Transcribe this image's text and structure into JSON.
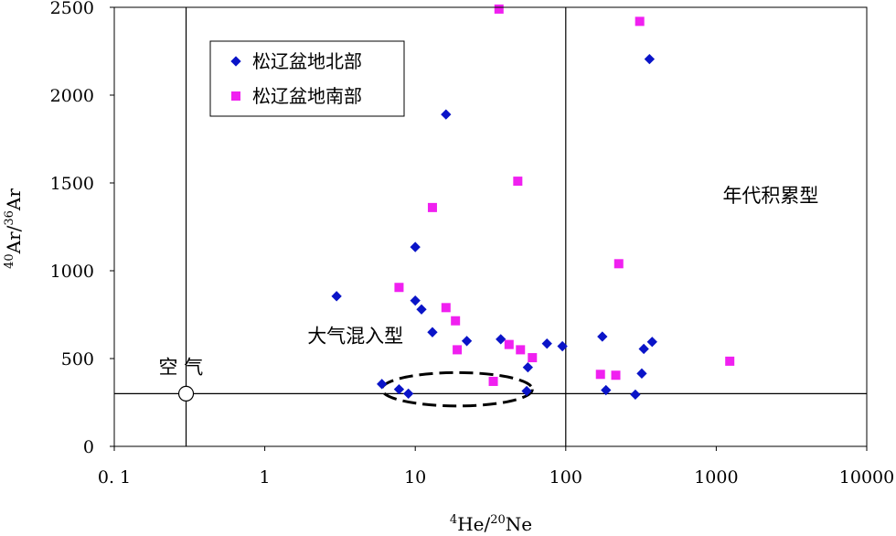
{
  "chart_data": {
    "type": "scatter",
    "title": "",
    "xscale": "log",
    "xlim": [
      0.1,
      10000
    ],
    "ylim": [
      0,
      2500
    ],
    "x_tick_values": [
      0.1,
      1,
      10,
      100,
      1000,
      10000
    ],
    "x_tick_labels": [
      "0. 1",
      "1",
      "10",
      "100",
      "1000",
      "10000"
    ],
    "y_tick_values": [
      0,
      500,
      1000,
      1500,
      2000,
      2500
    ],
    "y_tick_labels": [
      "0",
      "500",
      "1000",
      "1500",
      "2000",
      "2500"
    ],
    "xlabel": {
      "pre": "4",
      "mid": "He/",
      "sup2": "20",
      "post": "Ne"
    },
    "ylabel": {
      "pre": "40",
      "mid": "Ar/",
      "sup2": "36",
      "post": "Ar"
    },
    "grid": false,
    "legend_position": "top-left",
    "series": [
      {
        "name": "松辽盆地北部",
        "marker": "diamond",
        "color": "#0a14c8",
        "points": [
          [
            3.0,
            855
          ],
          [
            6.0,
            355
          ],
          [
            7.8,
            325
          ],
          [
            9.0,
            300
          ],
          [
            10.0,
            830
          ],
          [
            11.0,
            780
          ],
          [
            10.0,
            1135
          ],
          [
            13.0,
            650
          ],
          [
            16.0,
            1890
          ],
          [
            22.0,
            600
          ],
          [
            37.0,
            610
          ],
          [
            56.0,
            450
          ],
          [
            55.0,
            315
          ],
          [
            75.0,
            585
          ],
          [
            95.0,
            570
          ],
          [
            175.0,
            625
          ],
          [
            185.0,
            320
          ],
          [
            290.0,
            295
          ],
          [
            320.0,
            415
          ],
          [
            330.0,
            555
          ],
          [
            360.0,
            2205
          ],
          [
            375.0,
            595
          ]
        ]
      },
      {
        "name": "松辽盆地南部",
        "marker": "square",
        "color": "#f020f0",
        "points": [
          [
            36.0,
            2490
          ],
          [
            7.8,
            905
          ],
          [
            13.0,
            1360
          ],
          [
            16.0,
            790
          ],
          [
            18.5,
            715
          ],
          [
            19.0,
            550
          ],
          [
            42.0,
            580
          ],
          [
            48.0,
            1510
          ],
          [
            50.0,
            550
          ],
          [
            60.0,
            505
          ],
          [
            33.0,
            370
          ],
          [
            170.0,
            410
          ],
          [
            215.0,
            405
          ],
          [
            225.0,
            1040
          ],
          [
            310.0,
            2420
          ],
          [
            1230.0,
            485
          ]
        ]
      }
    ],
    "reference_lines": {
      "x": [
        0.3,
        100
      ],
      "y": [
        300
      ]
    },
    "air_point": {
      "x": 0.3,
      "y": 300,
      "label": "空  气"
    },
    "ellipse": {
      "x_range": [
        6.0,
        60.0
      ],
      "y_center": 325,
      "y_half": 95
    },
    "annotations": [
      {
        "text": "年代积累型",
        "x": 2300,
        "y": 1390
      },
      {
        "text": "大气混入型",
        "x": 4.0,
        "y": 590
      }
    ]
  }
}
